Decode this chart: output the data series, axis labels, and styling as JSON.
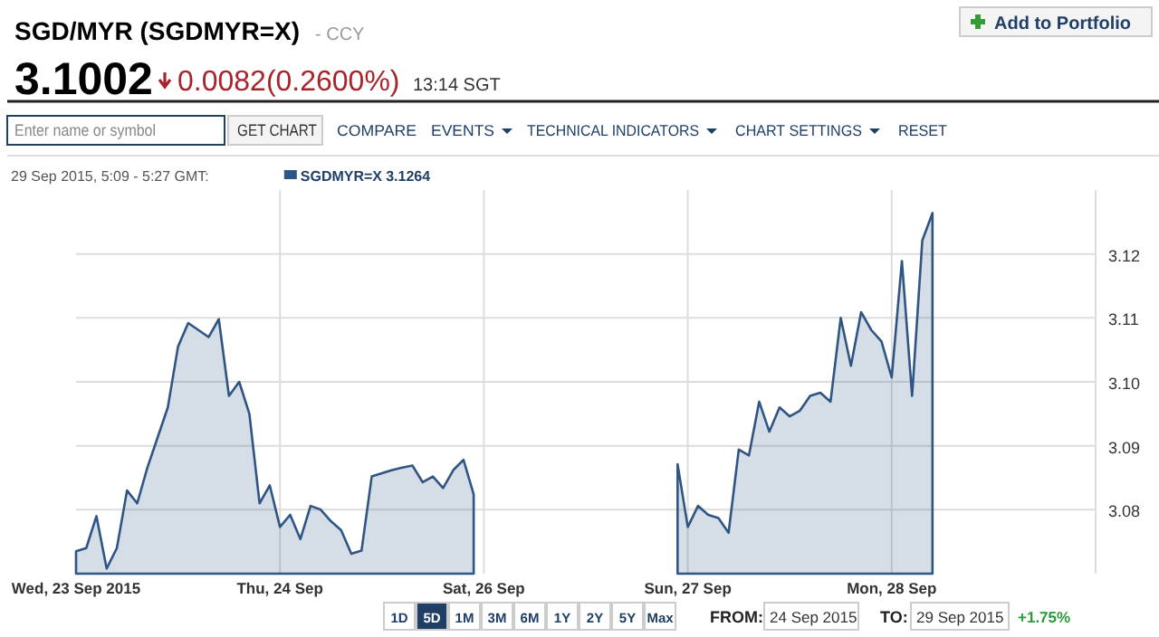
{
  "chart_data": {
    "type": "area",
    "title": "SGD/MYR (SGDMYR=X)",
    "subtitle": "- CCY",
    "legend_title": "29 Sep 2015, 5:09 - 5:27 GMT:",
    "legend": "top left",
    "categories": [
      "Wed, 23 Sep 2015",
      null,
      null,
      null,
      null,
      null,
      null,
      null,
      null,
      null,
      null,
      null,
      null,
      null,
      null,
      null,
      null,
      null,
      null,
      null,
      "Thu, 24 Sep",
      null,
      null,
      null,
      null,
      null,
      null,
      null,
      null,
      null,
      null,
      null,
      null,
      null,
      null,
      null,
      null,
      null,
      null,
      null,
      "Sat, 26 Sep",
      null,
      null,
      null,
      null,
      null,
      null,
      null,
      null,
      null,
      null,
      null,
      null,
      null,
      null,
      null,
      null,
      null,
      null,
      null,
      "Sun, 27 Sep",
      null,
      null,
      null,
      null,
      null,
      null,
      null,
      null,
      null,
      null,
      null,
      null,
      null,
      null,
      null,
      null,
      null,
      null,
      null,
      "Mon, 28 Sep",
      null,
      null,
      null,
      null,
      null,
      null,
      null,
      null,
      null,
      null,
      null,
      null,
      null,
      null,
      null,
      null,
      null,
      null,
      null
    ],
    "series": [
      {
        "name": "SGDMYR=X",
        "color": "#2f5584",
        "values": [
          3.0735,
          3.074,
          3.079,
          3.0708,
          3.074,
          3.083,
          3.081,
          3.0866,
          3.0913,
          3.096,
          3.1055,
          3.1092,
          3.1081,
          3.107,
          3.1098,
          3.0978,
          3.1,
          3.095,
          3.081,
          3.0838,
          3.0773,
          3.0792,
          3.0754,
          3.0806,
          3.08,
          3.0782,
          3.0768,
          3.0731,
          3.0736,
          3.0852,
          3.0857,
          3.0862,
          3.0866,
          3.0869,
          3.0843,
          3.0852,
          3.0834,
          3.0862,
          3.0878,
          3.0824,
          null,
          null,
          null,
          null,
          null,
          null,
          null,
          null,
          null,
          null,
          null,
          null,
          null,
          null,
          null,
          null,
          null,
          null,
          null,
          3.0871,
          3.0773,
          3.0806,
          3.0792,
          3.0787,
          3.0764,
          3.0894,
          3.0885,
          3.0969,
          3.0922,
          3.096,
          3.0946,
          3.0955,
          3.0978,
          3.0983,
          3.0969,
          3.11,
          3.1025,
          3.1109,
          3.1081,
          3.1063,
          3.1007,
          3.1189,
          3.0978,
          3.1221,
          3.1264,
          null,
          null,
          null,
          null,
          null,
          null,
          null,
          null,
          null,
          null,
          null,
          null,
          null,
          null,
          null
        ]
      }
    ],
    "ylim": [
      3.07,
      3.13
    ],
    "yticks": [
      3.08,
      3.09,
      {
        "value": 3.1,
        "label": "3.10"
      },
      3.11,
      3.12
    ],
    "grid": true,
    "annotations": [
      "3.1002",
      "0.0082(0.2600%)",
      "13:14 SGT",
      "Add to Portfolio",
      "Enter name or symbol",
      "GET CHART",
      "COMPARE",
      "EVENTS",
      "TECHNICAL INDICATORS",
      "CHART SETTINGS",
      "RESET",
      "3.1264",
      "1D",
      "5D",
      "1M",
      "3M",
      "6M",
      "1Y",
      "2Y",
      "5Y",
      "Max",
      "FROM:",
      "24 Sep 2015",
      "TO:",
      "29 Sep 2015",
      "+1.75%"
    ]
  }
}
